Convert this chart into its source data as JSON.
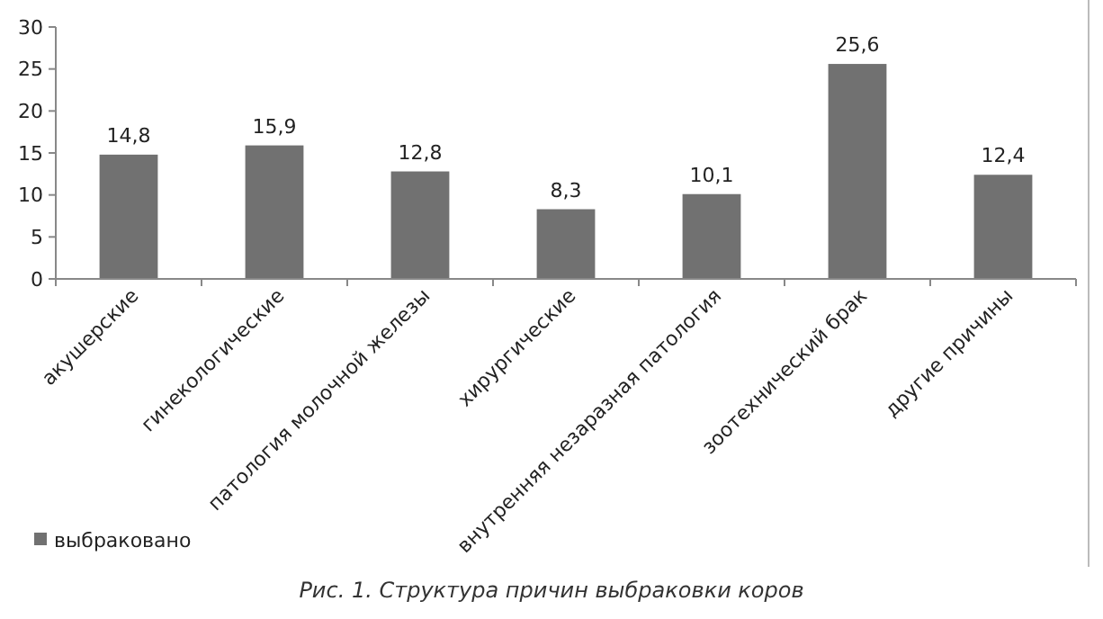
{
  "chart_data": {
    "type": "bar",
    "categories": [
      "акушерские",
      "гинекологические",
      "патология молочной железы",
      "хирургические",
      "внутренняя незаразная патология",
      "зоотехнический брак",
      "другие причины"
    ],
    "series": [
      {
        "name": "выбраковано",
        "color": "#717171",
        "values": [
          14.8,
          15.9,
          12.8,
          8.3,
          10.1,
          25.6,
          12.4
        ]
      }
    ],
    "value_labels": [
      "14,8",
      "15,9",
      "12,8",
      "8,3",
      "10,1",
      "25,6",
      "12,4"
    ],
    "ylim": [
      0,
      30
    ],
    "yticks": [
      0,
      5,
      10,
      15,
      20,
      25,
      30
    ],
    "grid": false,
    "legend": "bottom left",
    "annotations": [
      "Рис. 1. Структура причин выбраковки коров"
    ]
  }
}
